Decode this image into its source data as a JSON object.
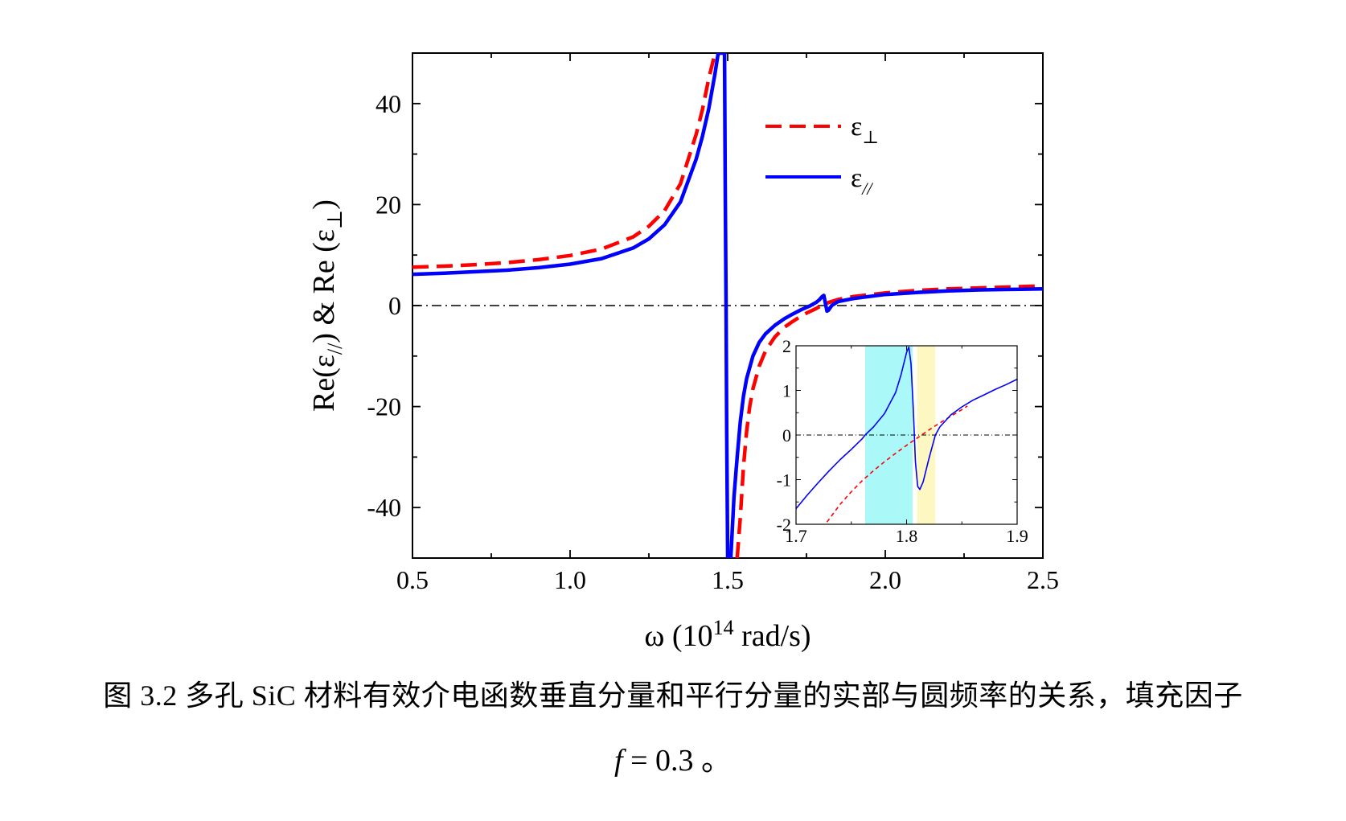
{
  "caption": {
    "line1": "图 3.2 多孔 SiC 材料有效介电函数垂直分量和平行分量的实部与圆频率的关系，填充因子",
    "line2_var": "f",
    "line2_rest": " = 0.3 。"
  },
  "chart_data": [
    {
      "type": "line",
      "xlabel": {
        "prefix": "ω (10",
        "sup": "14",
        "suffix": " rad/s)"
      },
      "ylabel": {
        "part1": "Re(ε",
        "sub1": "//",
        "part2": ") & Re (ε",
        "sub2": "⊥",
        "part3": ")"
      },
      "xlim": [
        0.5,
        2.5
      ],
      "ylim": [
        -50,
        50
      ],
      "xticks": [
        0.5,
        1.0,
        1.5,
        2.0,
        2.5
      ],
      "xtick_labels": [
        "0.5",
        "1.0",
        "1.5",
        "2.0",
        "2.5"
      ],
      "yticks": [
        -40,
        -20,
        0,
        20,
        40
      ],
      "ytick_labels": [
        "-40",
        "-20",
        "0",
        "20",
        "40"
      ],
      "grid": false,
      "legend": {
        "placement": "top-right"
      },
      "reference_line": {
        "y": 0,
        "style": "dash-dot",
        "color": "#000000"
      },
      "series": [
        {
          "name": "ε⊥",
          "legend_base": "ε",
          "legend_sub": "⊥",
          "color": "#ff0000",
          "style": "dashed",
          "segments": [
            {
              "x": [
                0.5,
                0.6,
                0.7,
                0.8,
                0.9,
                1.0,
                1.1,
                1.2,
                1.25,
                1.3,
                1.35,
                1.4,
                1.42,
                1.44,
                1.46,
                1.47,
                1.48
              ],
              "y": [
                7.6,
                7.8,
                8.1,
                8.5,
                9.1,
                9.9,
                11.2,
                13.6,
                15.7,
                18.8,
                24.1,
                33.9,
                38.8,
                45.0,
                50.0,
                50.0,
                50.0
              ]
            },
            {
              "x": [
                1.53,
                1.54,
                1.55,
                1.56,
                1.57,
                1.58,
                1.6,
                1.62,
                1.65,
                1.68,
                1.7,
                1.73,
                1.75,
                1.78,
                1.8,
                1.82,
                1.85,
                1.9,
                2.0,
                2.1,
                2.2,
                2.3,
                2.4,
                2.5
              ],
              "y": [
                -50.0,
                -42.0,
                -32.0,
                -25.0,
                -20.0,
                -16.5,
                -12.0,
                -9.0,
                -6.2,
                -4.3,
                -3.4,
                -2.2,
                -1.5,
                -0.6,
                0.1,
                0.6,
                1.2,
                1.8,
                2.5,
                3.0,
                3.3,
                3.5,
                3.7,
                3.9
              ]
            }
          ]
        },
        {
          "name": "ε//",
          "legend_base": "ε",
          "legend_sub": "//",
          "color": "#0000ff",
          "style": "solid",
          "segments": [
            {
              "x": [
                0.5,
                0.6,
                0.7,
                0.8,
                0.9,
                1.0,
                1.1,
                1.2,
                1.25,
                1.3,
                1.35,
                1.4,
                1.42,
                1.44,
                1.46,
                1.47,
                1.48,
                1.485,
                1.49
              ],
              "y": [
                6.2,
                6.4,
                6.7,
                7.0,
                7.5,
                8.2,
                9.3,
                11.4,
                13.2,
                16.0,
                20.5,
                29.0,
                33.5,
                39.0,
                46.0,
                50.0,
                50.0,
                50.0,
                50.0
              ]
            },
            {
              "x": [
                1.49,
                1.492,
                1.495,
                1.497,
                1.5
              ],
              "y": [
                50.0,
                25.0,
                0.0,
                -25.0,
                -50.0
              ]
            },
            {
              "x": [
                1.51,
                1.52,
                1.53,
                1.54,
                1.55,
                1.56,
                1.58,
                1.6,
                1.62,
                1.65,
                1.68,
                1.7,
                1.73,
                1.76,
                1.78,
                1.79,
                1.8,
                1.805,
                1.81,
                1.815,
                1.82,
                1.83,
                1.85,
                1.9,
                2.0,
                2.1,
                2.2,
                2.3,
                2.4,
                2.5
              ],
              "y": [
                -50.0,
                -38.0,
                -30.0,
                -23.0,
                -18.0,
                -14.5,
                -10.0,
                -7.3,
                -5.6,
                -3.9,
                -2.6,
                -1.9,
                -0.9,
                -0.1,
                0.6,
                1.1,
                1.8,
                2.0,
                0.5,
                -1.1,
                -0.9,
                0.0,
                0.8,
                1.4,
                2.2,
                2.6,
                2.9,
                3.1,
                3.2,
                3.3
              ]
            }
          ]
        }
      ]
    },
    {
      "type": "line",
      "xlim": [
        1.7,
        1.9
      ],
      "ylim": [
        -2,
        2
      ],
      "xticks": [
        1.7,
        1.8,
        1.9
      ],
      "xtick_labels": [
        "1.7",
        "1.8",
        "1.9"
      ],
      "yticks": [
        -2,
        -1,
        0,
        1,
        2
      ],
      "ytick_labels": [
        "-2",
        "-1",
        "0",
        "1",
        "2"
      ],
      "grid": false,
      "reference_line": {
        "y": 0,
        "style": "dash-dot",
        "color": "#000000"
      },
      "shaded_regions": [
        {
          "x0": 1.7625,
          "x1": 1.8055,
          "color": "#aaf8f8"
        },
        {
          "x0": 1.8095,
          "x1": 1.826,
          "color": "#fdf7c2"
        }
      ],
      "series": [
        {
          "color": "#ff0000",
          "style": "dashed",
          "x": [
            1.728,
            1.74,
            1.75,
            1.76,
            1.77,
            1.78,
            1.79,
            1.8,
            1.81,
            1.82,
            1.83,
            1.84,
            1.85,
            1.855
          ],
          "y": [
            -1.95,
            -1.55,
            -1.27,
            -1.02,
            -0.8,
            -0.6,
            -0.41,
            -0.23,
            -0.06,
            0.11,
            0.27,
            0.42,
            0.57,
            0.65
          ]
        },
        {
          "color": "#0000ff",
          "style": "solid",
          "x": [
            1.7,
            1.71,
            1.72,
            1.73,
            1.74,
            1.75,
            1.76,
            1.7625,
            1.77,
            1.78,
            1.79,
            1.795,
            1.8,
            1.802,
            1.804,
            1.806,
            1.808,
            1.81,
            1.812,
            1.815,
            1.82,
            1.826,
            1.83,
            1.84,
            1.85,
            1.86,
            1.87,
            1.88,
            1.89,
            1.9
          ],
          "y": [
            -1.65,
            -1.35,
            -1.07,
            -0.8,
            -0.55,
            -0.32,
            -0.08,
            0.0,
            0.18,
            0.48,
            0.95,
            1.35,
            1.85,
            1.97,
            1.6,
            0.6,
            -0.6,
            -1.15,
            -1.22,
            -1.05,
            -0.55,
            0.0,
            0.18,
            0.45,
            0.63,
            0.78,
            0.9,
            1.02,
            1.13,
            1.25
          ]
        }
      ]
    }
  ]
}
